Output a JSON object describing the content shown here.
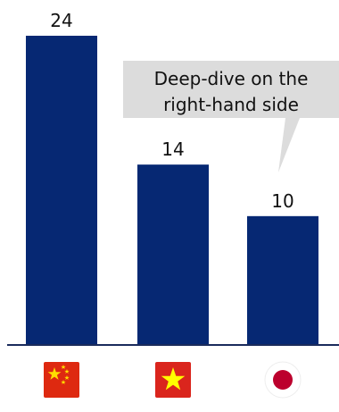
{
  "chart_data": {
    "type": "bar",
    "categories": [
      "China",
      "Vietnam",
      "Japan"
    ],
    "values": [
      24,
      14,
      10
    ],
    "ylim": [
      0,
      24
    ],
    "grid": false,
    "legend": "none",
    "title": "",
    "xlabel": "",
    "ylabel": "",
    "annotation": {
      "lines": [
        "Deep-dive on the",
        "right-hand side"
      ]
    }
  },
  "colors": {
    "bar": "#062873",
    "axis": "#1a2b5c",
    "callout_bg": "#dcdcdc",
    "china_red": "#de2910",
    "china_star": "#ffde00",
    "vietnam_red": "#da251d",
    "vietnam_star": "#ffff00",
    "japan_disc": "#bc002d"
  },
  "icons": [
    "china-flag-icon",
    "vietnam-flag-icon",
    "japan-flag-icon"
  ]
}
